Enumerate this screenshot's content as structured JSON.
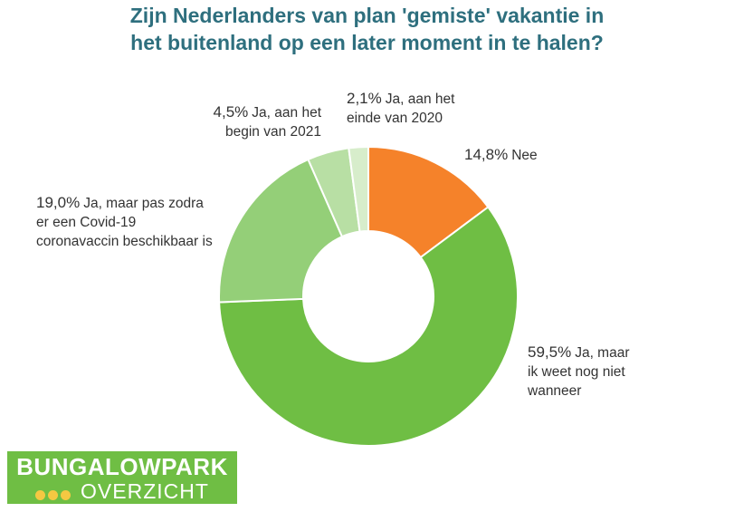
{
  "chart_data": {
    "type": "donut",
    "title": [
      "Zijn Nederlanders van plan 'gemiste' vakantie in",
      "het buitenland op een later moment in te halen?"
    ],
    "categories": [
      "Nee",
      "Ja, maar ik weet nog niet wanneer",
      "Ja, maar pas zodra er een Covid-19 coronavaccin beschikbaar is",
      "Ja, aan het begin van 2021",
      "Ja, aan het einde van 2020"
    ],
    "values": [
      14.8,
      59.5,
      19.0,
      4.5,
      2.1
    ],
    "value_labels": [
      "14,8%",
      "59,5%",
      "19,0%",
      "4,5%",
      "2,1%"
    ],
    "colors": [
      "#f5822a",
      "#6fbe44",
      "#94cf78",
      "#b8dfa4",
      "#d7edcb"
    ]
  },
  "logo": {
    "line1": "BUNGALOWPARK",
    "line2": "OVERZICHT"
  }
}
